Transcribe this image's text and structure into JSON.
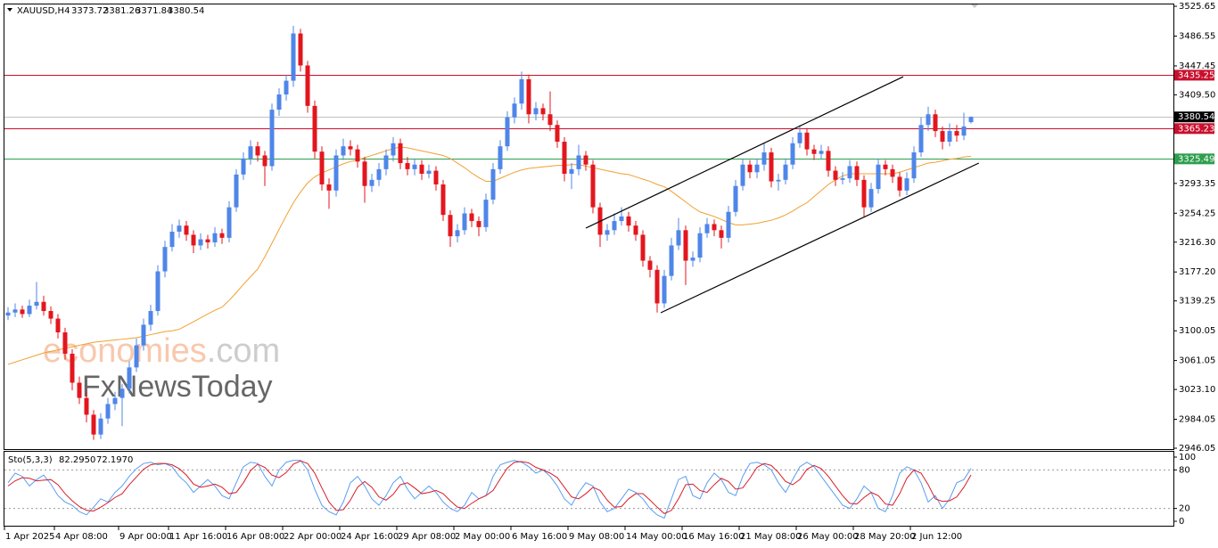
{
  "header": {
    "symbol": "XAUUSD,H4",
    "ohlc": [
      3373.72,
      3381.26,
      3371.84,
      3380.54
    ]
  },
  "watermark": {
    "brand": "economies",
    "domain": ".com",
    "partner": "FxNewsToday"
  },
  "chart_data": [
    {
      "type": "candlestick",
      "categories": [
        "1 Apr 2025",
        null,
        null,
        null,
        null,
        null,
        null,
        "4 Apr 08:00",
        null,
        null,
        null,
        null,
        null,
        null,
        null,
        null,
        "9 Apr 00:00",
        null,
        null,
        null,
        null,
        null,
        null,
        "11 Apr 16:00",
        null,
        null,
        null,
        null,
        null,
        null,
        null,
        "16 Apr 08:00",
        null,
        null,
        null,
        null,
        null,
        null,
        null,
        "22 Apr 00:00",
        null,
        null,
        null,
        null,
        null,
        null,
        null,
        "24 Apr 16:00",
        null,
        null,
        null,
        null,
        null,
        null,
        null,
        "29 Apr 08:00",
        null,
        null,
        null,
        null,
        null,
        null,
        null,
        "2 May 00:00",
        null,
        null,
        null,
        null,
        null,
        null,
        null,
        "6 May 16:00",
        null,
        null,
        null,
        null,
        null,
        null,
        null,
        "9 May 08:00",
        null,
        null,
        null,
        null,
        null,
        null,
        null,
        "14 May 00:00",
        null,
        null,
        null,
        null,
        null,
        null,
        null,
        "16 May 16:00",
        null,
        null,
        null,
        null,
        null,
        null,
        null,
        "21 May 08:00",
        null,
        null,
        null,
        null,
        null,
        null,
        null,
        "26 May 00:00",
        null,
        null,
        null,
        null,
        null,
        null,
        null,
        "28 May 20:00",
        null,
        null,
        null,
        null,
        null,
        null,
        null,
        "2 Jun 12:00",
        null,
        null,
        null,
        null,
        null,
        null,
        null,
        null
      ],
      "open": [
        3120,
        3124,
        3128,
        3122,
        3133,
        3138,
        3126,
        3116,
        3098,
        3070,
        3032,
        3012,
        2990,
        2964,
        2985,
        3004,
        3012,
        3024,
        3052,
        3081,
        3108,
        3126,
        3178,
        3210,
        3230,
        3238,
        3226,
        3212,
        3220,
        3216,
        3228,
        3222,
        3262,
        3305,
        3326,
        3342,
        3330,
        3316,
        3390,
        3410,
        3428,
        3490,
        3448,
        3395,
        3335,
        3292,
        3284,
        3330,
        3342,
        3338,
        3322,
        3290,
        3298,
        3312,
        3330,
        3346,
        3320,
        3312,
        3318,
        3306,
        3310,
        3292,
        3252,
        3224,
        3232,
        3254,
        3244,
        3236,
        3272,
        3312,
        3342,
        3380,
        3398,
        3430,
        3384,
        3392,
        3384,
        3370,
        3348,
        3306,
        3312,
        3330,
        3318,
        3262,
        3226,
        3232,
        3244,
        3250,
        3238,
        3226,
        3192,
        3180,
        3136,
        3172,
        3212,
        3232,
        3192,
        3196,
        3228,
        3240,
        3232,
        3222,
        3256,
        3290,
        3318,
        3308,
        3318,
        3334,
        3296,
        3298,
        3318,
        3346,
        3360,
        3338,
        3332,
        3336,
        3310,
        3298,
        3300,
        3316,
        3298,
        3262,
        3286,
        3318,
        3312,
        3302,
        3284,
        3300,
        3334,
        3370,
        3384,
        3362,
        3348,
        3362,
        3356,
        3373.72
      ],
      "high": [
        3131,
        3136,
        3133,
        3141,
        3164,
        3146,
        3132,
        3122,
        3104,
        3076,
        3040,
        3020,
        2996,
        2992,
        3012,
        3020,
        3030,
        3060,
        3090,
        3116,
        3134,
        3186,
        3218,
        3240,
        3246,
        3244,
        3232,
        3228,
        3226,
        3236,
        3234,
        3270,
        3312,
        3334,
        3350,
        3348,
        3336,
        3398,
        3418,
        3436,
        3500,
        3496,
        3454,
        3402,
        3342,
        3300,
        3338,
        3352,
        3350,
        3344,
        3328,
        3306,
        3320,
        3338,
        3354,
        3352,
        3328,
        3326,
        3324,
        3318,
        3316,
        3298,
        3258,
        3240,
        3262,
        3260,
        3250,
        3280,
        3320,
        3350,
        3388,
        3406,
        3440,
        3436,
        3400,
        3398,
        3414,
        3376,
        3354,
        3320,
        3344,
        3336,
        3324,
        3268,
        3240,
        3254,
        3262,
        3256,
        3244,
        3232,
        3198,
        3186,
        3180,
        3222,
        3248,
        3238,
        3204,
        3236,
        3248,
        3246,
        3238,
        3264,
        3298,
        3326,
        3324,
        3326,
        3346,
        3340,
        3306,
        3326,
        3354,
        3370,
        3366,
        3344,
        3344,
        3342,
        3316,
        3308,
        3324,
        3322,
        3304,
        3294,
        3326,
        3324,
        3318,
        3308,
        3308,
        3342,
        3380,
        3394,
        3390,
        3368,
        3372,
        3370,
        3386,
        3381.26
      ],
      "low": [
        3114,
        3118,
        3117,
        3118,
        3128,
        3120,
        3109,
        3090,
        3062,
        3022,
        3004,
        2980,
        2957,
        2958,
        2978,
        2996,
        2975,
        3018,
        3046,
        3074,
        3100,
        3120,
        3170,
        3204,
        3222,
        3218,
        3202,
        3206,
        3208,
        3210,
        3214,
        3216,
        3256,
        3298,
        3318,
        3322,
        3290,
        3310,
        3382,
        3402,
        3420,
        3440,
        3386,
        3326,
        3284,
        3260,
        3276,
        3324,
        3330,
        3314,
        3268,
        3282,
        3290,
        3304,
        3322,
        3312,
        3304,
        3304,
        3298,
        3300,
        3284,
        3244,
        3210,
        3216,
        3226,
        3236,
        3224,
        3230,
        3266,
        3306,
        3336,
        3372,
        3390,
        3372,
        3376,
        3376,
        3362,
        3340,
        3296,
        3286,
        3304,
        3310,
        3254,
        3210,
        3218,
        3226,
        3238,
        3230,
        3218,
        3184,
        3170,
        3124,
        3130,
        3166,
        3206,
        3160,
        3184,
        3190,
        3222,
        3224,
        3208,
        3216,
        3250,
        3284,
        3300,
        3300,
        3310,
        3288,
        3284,
        3292,
        3312,
        3340,
        3330,
        3324,
        3326,
        3302,
        3290,
        3292,
        3294,
        3290,
        3250,
        3256,
        3280,
        3304,
        3294,
        3276,
        3278,
        3294,
        3328,
        3362,
        3354,
        3338,
        3342,
        3348,
        3350,
        3371.84
      ],
      "close": [
        3124,
        3128,
        3122,
        3133,
        3138,
        3126,
        3116,
        3098,
        3070,
        3032,
        3012,
        2990,
        2964,
        2985,
        3004,
        3012,
        3024,
        3052,
        3081,
        3108,
        3126,
        3178,
        3210,
        3230,
        3238,
        3226,
        3212,
        3220,
        3216,
        3228,
        3222,
        3262,
        3305,
        3326,
        3342,
        3330,
        3316,
        3390,
        3410,
        3428,
        3490,
        3448,
        3395,
        3335,
        3292,
        3284,
        3330,
        3342,
        3338,
        3322,
        3290,
        3298,
        3312,
        3330,
        3346,
        3320,
        3312,
        3318,
        3306,
        3310,
        3292,
        3252,
        3224,
        3232,
        3254,
        3244,
        3236,
        3272,
        3312,
        3342,
        3380,
        3398,
        3430,
        3384,
        3392,
        3384,
        3370,
        3348,
        3306,
        3312,
        3330,
        3318,
        3262,
        3226,
        3232,
        3244,
        3250,
        3238,
        3226,
        3192,
        3180,
        3136,
        3172,
        3212,
        3232,
        3192,
        3196,
        3228,
        3240,
        3232,
        3222,
        3256,
        3290,
        3318,
        3308,
        3318,
        3334,
        3296,
        3298,
        3318,
        3346,
        3360,
        3338,
        3332,
        3336,
        3310,
        3298,
        3300,
        3316,
        3298,
        3262,
        3286,
        3318,
        3312,
        3302,
        3284,
        3300,
        3334,
        3370,
        3384,
        3362,
        3348,
        3362,
        3356,
        3368,
        3380.54
      ],
      "up_color": "#4f86e8",
      "down_color": "#e3161e",
      "ma": {
        "color": "#f0a030",
        "values": [
          3056,
          3059,
          3062,
          3065,
          3068,
          3071,
          3073,
          3075,
          3077,
          3079,
          3081,
          3083,
          3085,
          3086,
          3087,
          3088,
          3089,
          3090,
          3091,
          3093,
          3095,
          3097,
          3099,
          3100,
          3102,
          3107,
          3112,
          3117,
          3122,
          3127,
          3131,
          3140,
          3150,
          3161,
          3171,
          3181,
          3197,
          3215,
          3233,
          3251,
          3268,
          3282,
          3294,
          3302,
          3307,
          3311,
          3315,
          3319,
          3322,
          3324,
          3327,
          3330,
          3333,
          3336,
          3339,
          3341,
          3340,
          3338,
          3336,
          3334,
          3332,
          3330,
          3326,
          3320,
          3314,
          3307,
          3301,
          3296,
          3296,
          3300,
          3304,
          3308,
          3311,
          3313,
          3314,
          3315,
          3316,
          3317,
          3317,
          3318,
          3318,
          3316,
          3314,
          3312,
          3310,
          3308,
          3306,
          3305,
          3302,
          3299,
          3296,
          3292,
          3289,
          3283,
          3276,
          3269,
          3262,
          3256,
          3253,
          3250,
          3246,
          3242,
          3239,
          3239,
          3240,
          3241,
          3243,
          3245,
          3248,
          3252,
          3257,
          3263,
          3268,
          3276,
          3284,
          3292,
          3298,
          3303,
          3306,
          3306,
          3306,
          3306,
          3306,
          3306,
          3306,
          3308,
          3311,
          3314,
          3317,
          3320,
          3321,
          3323,
          3325,
          3326,
          3328,
          3329
        ]
      },
      "levels": [
        {
          "value": 3435.25,
          "color": "#c8102e",
          "box": "#c8102e"
        },
        {
          "value": 3380.54,
          "color": "#c0c0c0",
          "box": "#000000"
        },
        {
          "value": 3365.23,
          "color": "#c8102e",
          "box": "#c8102e"
        },
        {
          "value": 3325.49,
          "color": "#2e9e4f",
          "box": "#2e9e4f"
        }
      ],
      "trendlines": [
        {
          "x0": 81,
          "y0": 3234.7,
          "x1": 125.5,
          "y1": 3433.3
        },
        {
          "x0": 91.5,
          "y0": 3123.7,
          "x1": 136.1,
          "y1": 3320.0
        }
      ],
      "ylim": [
        2944.9,
        3529.2
      ],
      "yticks": [
        3525.65,
        3486.55,
        3447.45,
        {
          "value": 3409.5,
          "label": "3409.50"
        },
        3293.35,
        3254.25,
        {
          "value": 3216.3,
          "label": "3216.30"
        },
        {
          "value": 3177.2,
          "label": "3177.20"
        },
        3139.25,
        3100.05,
        3061.05,
        {
          "value": 3023.1,
          "label": "3023.10"
        },
        2984.05,
        2946.05
      ]
    },
    {
      "type": "line",
      "indicator": "Sto(5,3,3)",
      "last_labels": [
        "82.2950",
        "72.1970"
      ],
      "series": [
        {
          "color": "#5a9ef0",
          "values": [
            60,
            75,
            70,
            55,
            65,
            72,
            58,
            40,
            30,
            25,
            15,
            10,
            22,
            35,
            30,
            45,
            55,
            70,
            82,
            90,
            92,
            88,
            90,
            85,
            70,
            60,
            45,
            55,
            65,
            55,
            40,
            35,
            60,
            85,
            92,
            90,
            70,
            55,
            80,
            92,
            95,
            95,
            80,
            50,
            25,
            15,
            10,
            30,
            60,
            70,
            55,
            35,
            25,
            40,
            60,
            70,
            50,
            35,
            45,
            55,
            45,
            30,
            20,
            15,
            25,
            45,
            35,
            40,
            70,
            88,
            92,
            95,
            92,
            85,
            75,
            80,
            70,
            55,
            35,
            25,
            45,
            60,
            55,
            30,
            15,
            20,
            35,
            50,
            45,
            35,
            20,
            10,
            5,
            35,
            65,
            70,
            40,
            35,
            60,
            75,
            65,
            45,
            40,
            70,
            90,
            92,
            88,
            80,
            60,
            45,
            65,
            85,
            92,
            85,
            70,
            55,
            40,
            25,
            20,
            35,
            55,
            45,
            20,
            15,
            40,
            75,
            85,
            80,
            60,
            30,
            40,
            20,
            35,
            60,
            65,
            82.295
          ]
        },
        {
          "color": "#d81e28",
          "values": [
            55,
            63,
            68,
            67,
            63,
            64,
            65,
            57,
            43,
            32,
            23,
            17,
            16,
            22,
            29,
            37,
            43,
            57,
            69,
            81,
            88,
            90,
            90,
            88,
            82,
            72,
            58,
            53,
            55,
            58,
            53,
            43,
            45,
            60,
            79,
            89,
            84,
            72,
            68,
            76,
            89,
            94,
            90,
            75,
            52,
            30,
            17,
            18,
            33,
            53,
            62,
            53,
            38,
            33,
            42,
            57,
            60,
            52,
            43,
            45,
            48,
            43,
            32,
            22,
            20,
            28,
            35,
            40,
            48,
            66,
            83,
            92,
            93,
            91,
            84,
            80,
            75,
            68,
            53,
            38,
            35,
            43,
            53,
            48,
            33,
            22,
            23,
            35,
            43,
            43,
            33,
            22,
            12,
            17,
            35,
            57,
            58,
            48,
            45,
            57,
            67,
            62,
            50,
            52,
            67,
            84,
            90,
            87,
            76,
            62,
            57,
            65,
            81,
            87,
            82,
            70,
            55,
            40,
            28,
            27,
            37,
            45,
            40,
            27,
            25,
            43,
            67,
            80,
            75,
            57,
            35,
            31,
            32,
            38,
            53,
            72.197
          ]
        }
      ],
      "levels": [
        20,
        80
      ],
      "ylim": [
        -6.9,
        108.3
      ],
      "yticks": [
        0,
        20,
        80,
        100
      ]
    }
  ]
}
